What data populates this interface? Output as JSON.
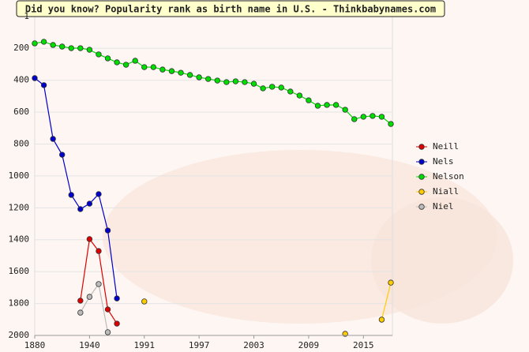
{
  "chart_data": {
    "type": "line",
    "title": "Did you know? Popularity rank as birth name in U.S. - Thinkbabynames.com",
    "categories": [
      "1880",
      null,
      null,
      null,
      null,
      null,
      "1940",
      null,
      null,
      null,
      null,
      null,
      "1991",
      null,
      null,
      null,
      null,
      null,
      "1997",
      null,
      null,
      null,
      null,
      null,
      "2003",
      null,
      null,
      null,
      null,
      null,
      "2009",
      null,
      null,
      null,
      null,
      null,
      "2015",
      null,
      null,
      null
    ],
    "ylim": [
      1,
      2000
    ],
    "yticks": [
      1,
      200,
      400,
      600,
      800,
      1000,
      1200,
      1400,
      1600,
      1800,
      2000
    ],
    "y_inverted": true,
    "grid": true,
    "legend": "right",
    "series": [
      {
        "name": "Neill",
        "color": "#dd0000",
        "values": [
          null,
          null,
          null,
          null,
          null,
          1782,
          1396,
          1471,
          1837,
          1926,
          null,
          null,
          null,
          null,
          null,
          null,
          null,
          null,
          null,
          null,
          null,
          null,
          null,
          null,
          null,
          null,
          null,
          null,
          null,
          null,
          null,
          null,
          null,
          null,
          null,
          null,
          null,
          null,
          null,
          null
        ]
      },
      {
        "name": "Nels",
        "color": "#0000cc",
        "values": [
          387,
          431,
          768,
          867,
          1119,
          1208,
          1174,
          1114,
          1342,
          1768,
          null,
          null,
          null,
          null,
          null,
          null,
          null,
          null,
          null,
          null,
          null,
          null,
          null,
          null,
          null,
          null,
          null,
          null,
          null,
          null,
          null,
          null,
          null,
          null,
          null,
          null,
          null,
          null,
          null,
          null
        ]
      },
      {
        "name": "Nelson",
        "color": "#00dd00",
        "values": [
          169,
          159,
          179,
          189,
          199,
          199,
          209,
          238,
          263,
          288,
          303,
          278,
          318,
          318,
          333,
          343,
          353,
          367,
          382,
          392,
          402,
          412,
          407,
          412,
          422,
          451,
          441,
          446,
          471,
          496,
          526,
          560,
          555,
          555,
          585,
          644,
          629,
          624,
          629,
          674
        ]
      },
      {
        "name": "Niall",
        "color": "#ffcc00",
        "values": [
          null,
          null,
          null,
          null,
          null,
          null,
          null,
          null,
          null,
          null,
          null,
          null,
          1787,
          null,
          null,
          null,
          null,
          null,
          null,
          null,
          null,
          null,
          null,
          null,
          null,
          null,
          null,
          null,
          null,
          null,
          null,
          null,
          null,
          null,
          1990,
          null,
          null,
          null,
          1901,
          1669
        ]
      },
      {
        "name": "Niel",
        "color": "#bbbbbb",
        "values": [
          null,
          null,
          null,
          null,
          null,
          1857,
          1758,
          1678,
          1980,
          null,
          null,
          null,
          null,
          null,
          null,
          null,
          null,
          null,
          null,
          null,
          null,
          null,
          null,
          null,
          null,
          null,
          null,
          null,
          null,
          null,
          null,
          null,
          null,
          null,
          null,
          null,
          null,
          null,
          null,
          null
        ]
      }
    ]
  }
}
